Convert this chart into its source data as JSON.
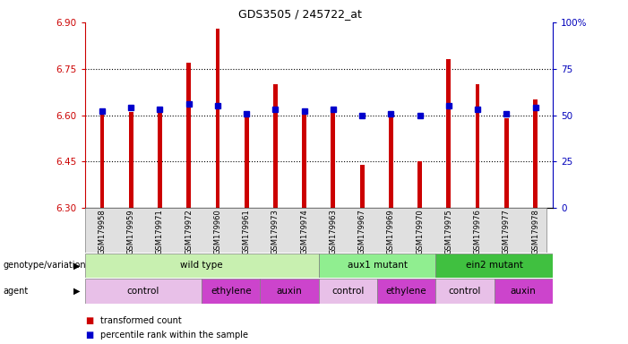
{
  "title": "GDS3505 / 245722_at",
  "samples": [
    "GSM179958",
    "GSM179959",
    "GSM179971",
    "GSM179972",
    "GSM179960",
    "GSM179961",
    "GSM179973",
    "GSM179974",
    "GSM179963",
    "GSM179967",
    "GSM179969",
    "GSM179970",
    "GSM179975",
    "GSM179976",
    "GSM179977",
    "GSM179978"
  ],
  "red_values": [
    6.61,
    6.61,
    6.62,
    6.77,
    6.88,
    6.6,
    6.7,
    6.62,
    6.62,
    6.44,
    6.6,
    6.45,
    6.78,
    6.7,
    6.59,
    6.65
  ],
  "blue_values": [
    52,
    54,
    53,
    56,
    55,
    51,
    53,
    52,
    53,
    50,
    51,
    50,
    55,
    53,
    51,
    54
  ],
  "ymin": 6.3,
  "ymax": 6.9,
  "yticks": [
    6.3,
    6.45,
    6.6,
    6.75,
    6.9
  ],
  "y2min": 0,
  "y2max": 100,
  "y2ticks": [
    0,
    25,
    50,
    75,
    100
  ],
  "y2ticklabels": [
    "0",
    "25",
    "50",
    "75",
    "100%"
  ],
  "dotted_lines": [
    6.45,
    6.6,
    6.75
  ],
  "genotype_groups": [
    {
      "label": "wild type",
      "start": 0,
      "end": 8,
      "color": "#c8f0b0"
    },
    {
      "label": "aux1 mutant",
      "start": 8,
      "end": 12,
      "color": "#90ee90"
    },
    {
      "label": "ein2 mutant",
      "start": 12,
      "end": 16,
      "color": "#40c040"
    }
  ],
  "agent_groups": [
    {
      "label": "control",
      "start": 0,
      "end": 4,
      "color": "#e8c0e8"
    },
    {
      "label": "ethylene",
      "start": 4,
      "end": 6,
      "color": "#cc44cc"
    },
    {
      "label": "auxin",
      "start": 6,
      "end": 8,
      "color": "#cc44cc"
    },
    {
      "label": "control",
      "start": 8,
      "end": 10,
      "color": "#e8c0e8"
    },
    {
      "label": "ethylene",
      "start": 10,
      "end": 12,
      "color": "#cc44cc"
    },
    {
      "label": "control",
      "start": 12,
      "end": 14,
      "color": "#e8c0e8"
    },
    {
      "label": "auxin",
      "start": 14,
      "end": 16,
      "color": "#cc44cc"
    }
  ],
  "bar_color": "#cc0000",
  "dot_color": "#0000cc",
  "bar_width": 0.15,
  "legend_red": "transformed count",
  "legend_blue": "percentile rank within the sample",
  "left_axis_color": "#cc0000",
  "right_axis_color": "#0000bb"
}
